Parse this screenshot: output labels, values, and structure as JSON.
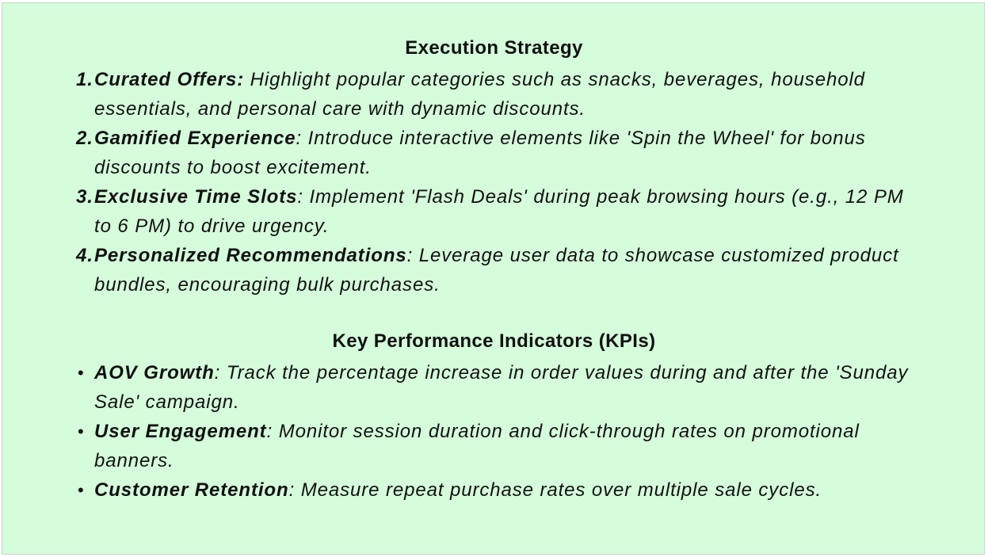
{
  "execution_strategy": {
    "heading": "Execution Strategy",
    "items": [
      {
        "marker": "1.",
        "term": "Curated Offers:",
        "text": " Highlight popular categories such as snacks, beverages, household essentials, and personal care with dynamic discounts."
      },
      {
        "marker": "2.",
        "term": "Gamified Experience",
        "text": ": Introduce interactive elements like 'Spin the Wheel' for bonus discounts to boost excitement."
      },
      {
        "marker": "3.",
        "term": "Exclusive Time Slots",
        "text": ": Implement 'Flash Deals' during peak browsing hours (e.g., 12 PM to 6 PM) to drive urgency."
      },
      {
        "marker": "4.",
        "term": "Personalized Recommendations",
        "text": ": Leverage user data to showcase customized product bundles, encouraging bulk purchases."
      }
    ]
  },
  "kpis": {
    "heading": "Key Performance Indicators (KPIs)",
    "items": [
      {
        "marker": "•",
        "term": "AOV Growth",
        "text": ": Track the percentage increase in order values during and after the 'Sunday Sale' campaign."
      },
      {
        "marker": "•",
        "term": "User Engagement",
        "text": ": Monitor session duration and click-through rates on promotional banners."
      },
      {
        "marker": "•",
        "term": "Customer Retention",
        "text": ": Measure repeat purchase rates over multiple sale cycles."
      }
    ]
  },
  "colors": {
    "slide_background": "#d5fcdb",
    "text": "#111111"
  }
}
